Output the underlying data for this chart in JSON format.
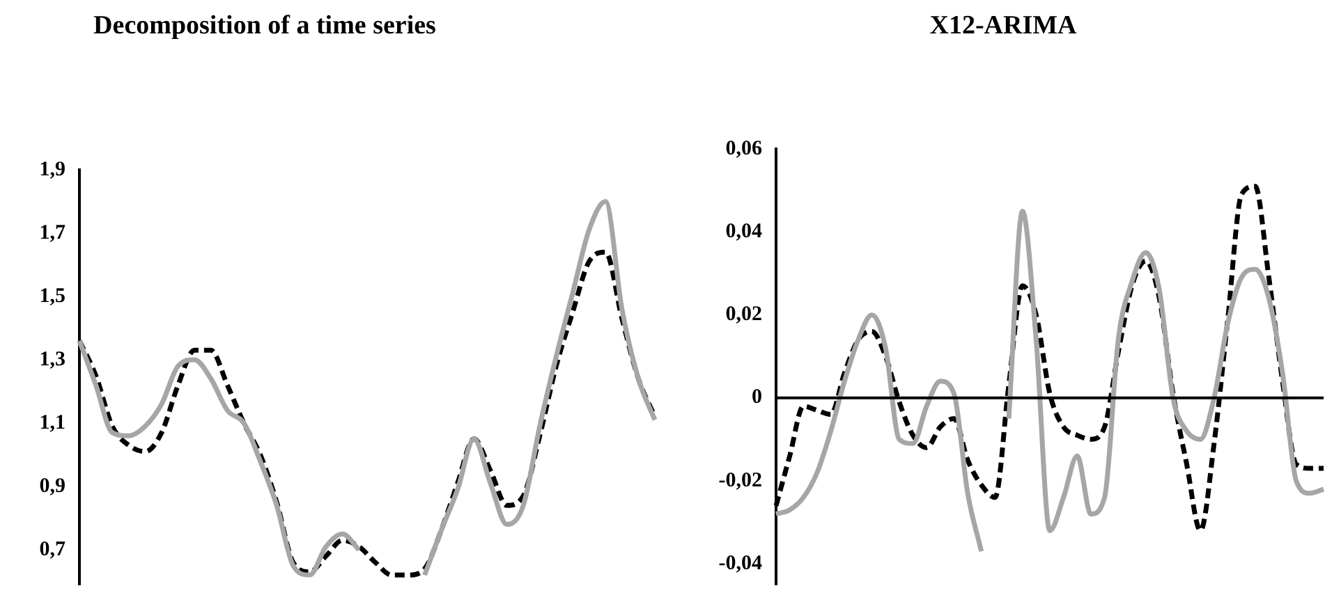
{
  "chart_data": [
    {
      "type": "line",
      "title": "Decomposition of a time series",
      "categories": [
        null,
        null,
        null,
        null,
        null,
        null,
        null,
        null,
        null,
        null,
        null,
        null,
        null,
        null,
        null,
        null,
        null,
        null,
        null,
        null,
        null,
        null,
        null,
        null,
        null,
        null,
        null,
        null,
        null,
        null,
        null,
        null,
        null,
        null,
        null,
        null
      ],
      "series": [
        {
          "color": "#a6a6a6",
          "line_style": "solid",
          "values": [
            1.36,
            1.22,
            1.07,
            1.06,
            1.09,
            1.16,
            1.28,
            1.3,
            1.24,
            1.14,
            1.1,
            0.98,
            0.84,
            0.65,
            0.62,
            0.71,
            0.75,
            0.7,
            null,
            null,
            null,
            0.62,
            0.76,
            0.89,
            1.05,
            0.91,
            0.78,
            0.84,
            1.09,
            1.31,
            1.51,
            1.71,
            1.8,
            1.46,
            1.24,
            1.11
          ]
        },
        {
          "color": "#000000",
          "line_style": "dashed",
          "values": [
            1.36,
            1.25,
            1.09,
            1.03,
            1.01,
            1.07,
            1.22,
            1.33,
            1.33,
            1.22,
            1.1,
            1.0,
            0.85,
            0.66,
            0.63,
            0.68,
            0.73,
            0.71,
            0.66,
            0.62,
            0.62,
            0.64,
            0.76,
            0.91,
            1.05,
            0.95,
            0.84,
            0.87,
            1.06,
            1.28,
            1.45,
            1.61,
            1.64,
            1.43,
            1.24,
            1.12
          ]
        }
      ],
      "ylim": [
        0.59,
        1.9
      ],
      "yticks": [
        {
          "value": 0.7,
          "label": "0,7"
        },
        {
          "value": 0.9,
          "label": "0,9"
        },
        {
          "value": 1.1,
          "label": "1,1"
        },
        {
          "value": 1.3,
          "label": "1,3"
        },
        {
          "value": 1.5,
          "label": "1,5"
        },
        {
          "value": 1.7,
          "label": "1,7"
        },
        {
          "value": 1.9,
          "label": "1,9"
        }
      ],
      "grid": false,
      "legend": false,
      "tick_labels": "y"
    },
    {
      "type": "line",
      "title": "X12-ARIMA",
      "categories": [
        null,
        null,
        null,
        null,
        null,
        null,
        null,
        null,
        null,
        null,
        null,
        null,
        null,
        null,
        null,
        null,
        null,
        null,
        null,
        null,
        null,
        null,
        null,
        null,
        null,
        null,
        null,
        null,
        null,
        null,
        null,
        null,
        null,
        null,
        null,
        null,
        null,
        null,
        null,
        null,
        null
      ],
      "series": [
        {
          "color": "#a6a6a6",
          "line_style": "solid",
          "values": [
            -0.028,
            -0.027,
            -0.024,
            -0.018,
            -0.008,
            0.004,
            0.014,
            0.02,
            0.012,
            -0.01,
            -0.011,
            -0.002,
            0.004,
            0.001,
            -0.023,
            -0.037,
            null,
            -0.005,
            0.045,
            0.014,
            -0.032,
            -0.024,
            -0.014,
            -0.028,
            -0.024,
            0.014,
            0.028,
            0.035,
            0.026,
            0.0,
            -0.008,
            -0.01,
            0.0,
            0.018,
            0.029,
            0.031,
            0.024,
            0.006,
            -0.02,
            -0.023,
            -0.022
          ]
        },
        {
          "color": "#000000",
          "line_style": "dashed",
          "values": [
            -0.026,
            -0.014,
            -0.002,
            -0.003,
            -0.004,
            0.006,
            0.014,
            0.016,
            0.01,
            -0.001,
            -0.009,
            -0.012,
            -0.007,
            -0.005,
            -0.015,
            -0.021,
            -0.024,
            0.003,
            0.027,
            0.02,
            0.001,
            -0.007,
            -0.009,
            -0.01,
            -0.007,
            0.011,
            0.027,
            0.033,
            0.024,
            0.001,
            -0.016,
            -0.032,
            -0.011,
            0.019,
            0.049,
            0.051,
            0.029,
            0.004,
            -0.016,
            -0.017,
            -0.017
          ]
        }
      ],
      "ylim": [
        -0.045,
        0.06
      ],
      "yticks": [
        {
          "value": -0.04,
          "label": "-0,04"
        },
        {
          "value": -0.02,
          "label": "-0,02"
        },
        0,
        {
          "value": 0.02,
          "label": "0,02"
        },
        {
          "value": 0.04,
          "label": "0,04"
        },
        {
          "value": 0.06,
          "label": "0,06"
        }
      ],
      "ref_lines": [
        {
          "axis": "y",
          "value": 0,
          "color": "#000000"
        }
      ],
      "grid": false,
      "legend": false,
      "tick_labels": "y"
    }
  ]
}
